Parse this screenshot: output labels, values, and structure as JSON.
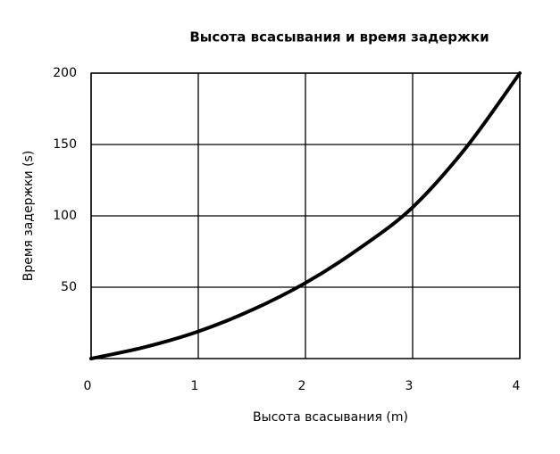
{
  "chart_data": {
    "type": "line",
    "title": "Высота всасывания и время задержки",
    "x_label": "Высота всасывания (m)",
    "y_label": "Время задержки (s)",
    "x": [
      0,
      0.5,
      1,
      1.5,
      2,
      2.5,
      3,
      3.5,
      4
    ],
    "values": [
      0,
      8,
      19,
      34,
      53,
      77,
      106,
      148,
      200
    ],
    "color": "#000000",
    "xlim": [
      0,
      4
    ],
    "xticks": [
      0,
      1,
      2,
      3,
      4
    ],
    "ylim": [
      0,
      200
    ],
    "yticks": [
      50,
      100,
      150,
      200
    ],
    "grid": true
  }
}
